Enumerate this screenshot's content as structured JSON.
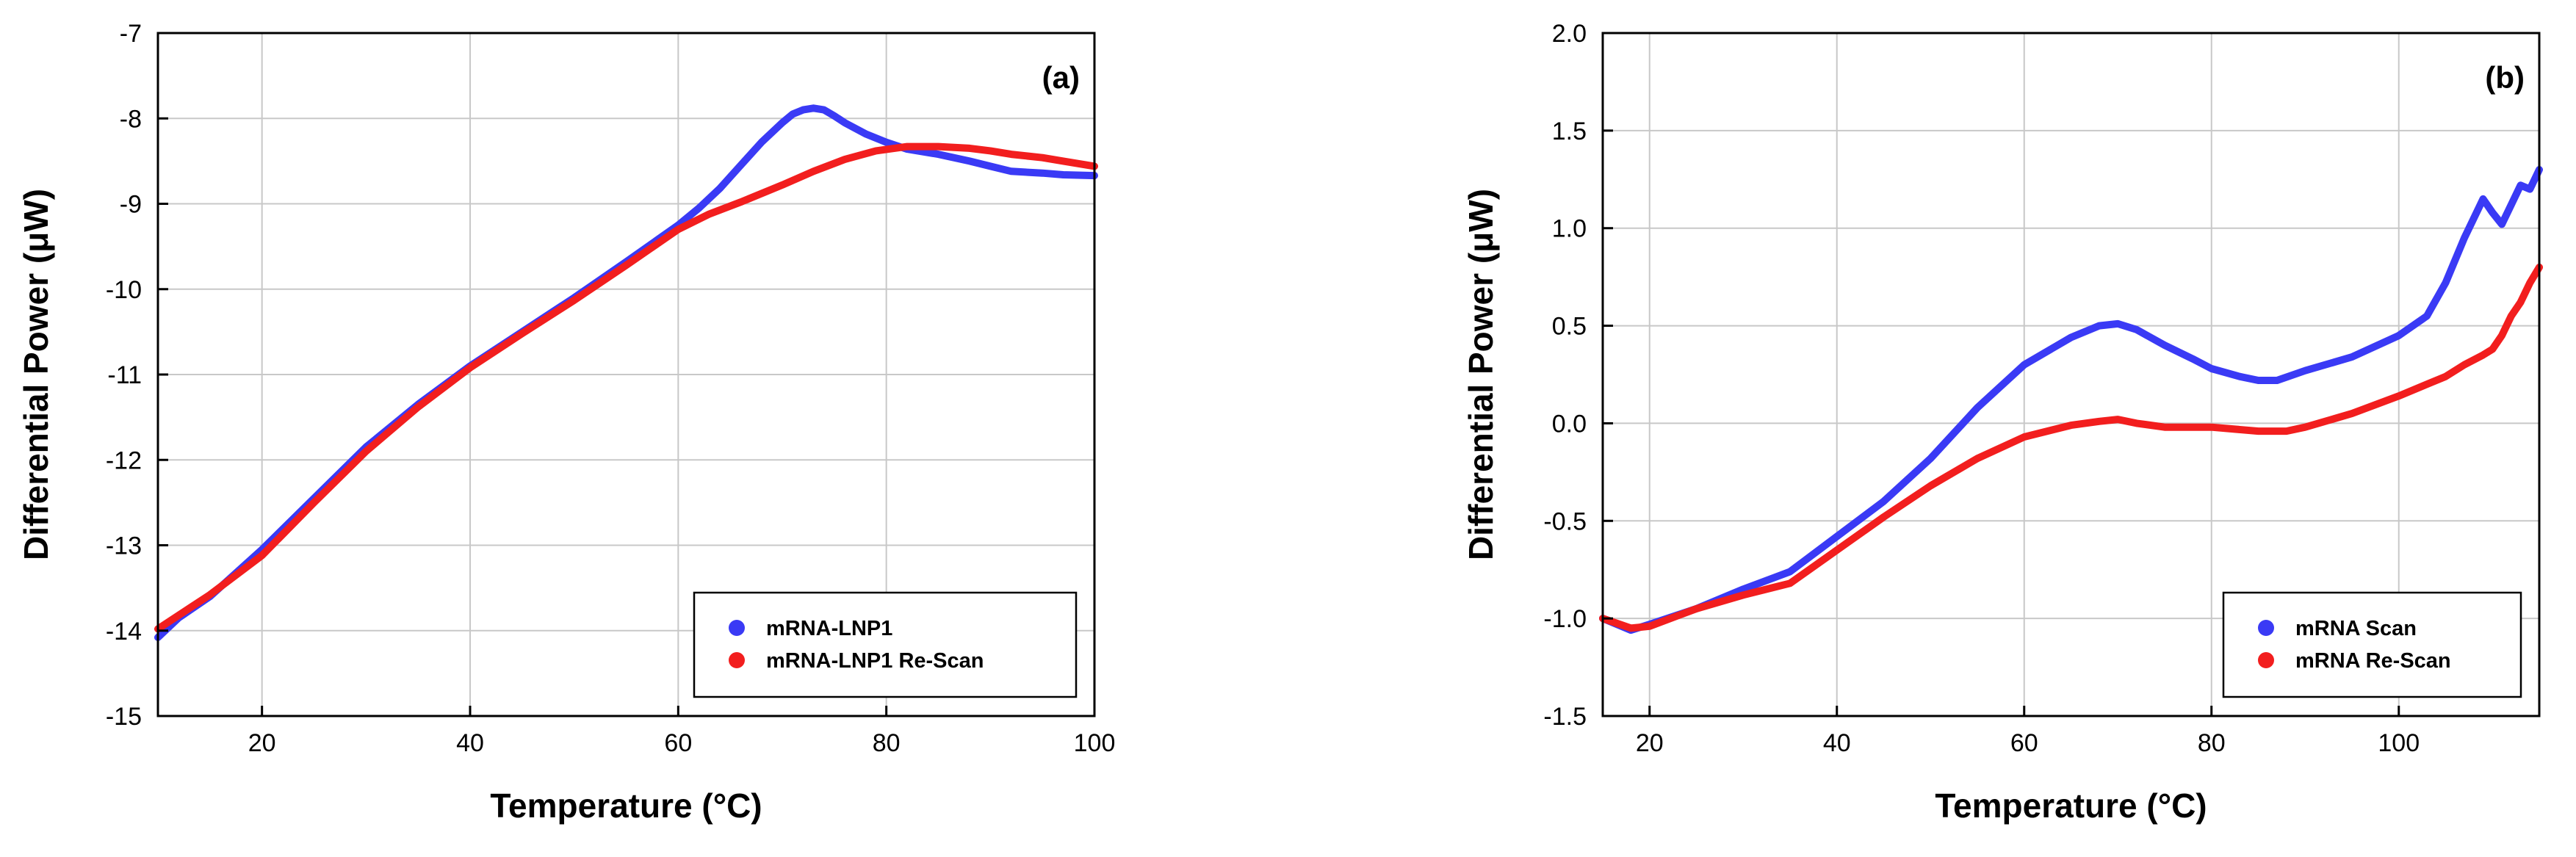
{
  "chart_data": [
    {
      "type": "line",
      "panel_label": "(a)",
      "xlabel": "Temperature (°C)",
      "ylabel": "Differential Power (μW)",
      "xlim": [
        10,
        100
      ],
      "ylim": [
        -15,
        -7
      ],
      "xticks": [
        20,
        40,
        60,
        80,
        100
      ],
      "xtick_labels": [
        "20",
        "40",
        "60",
        "80",
        "100"
      ],
      "yticks": [
        -15,
        -14,
        -13,
        -12,
        -11,
        -10,
        -9,
        -8,
        -7
      ],
      "ytick_labels": [
        "-15",
        "-14",
        "-13",
        "-12",
        "-11",
        "-10",
        "-9",
        "-8",
        "-7"
      ],
      "grid": true,
      "legend_position": "bottom-right",
      "series": [
        {
          "name": "mRNA-LNP1",
          "color": "#3a3af5",
          "x": [
            10,
            12,
            15,
            20,
            25,
            30,
            35,
            40,
            45,
            50,
            55,
            60,
            62,
            64,
            66,
            68,
            70,
            71,
            72,
            73,
            74,
            75,
            76,
            78,
            80,
            82,
            85,
            88,
            90,
            92,
            95,
            97,
            100
          ],
          "y": [
            -14.08,
            -13.85,
            -13.6,
            -13.05,
            -12.45,
            -11.85,
            -11.35,
            -10.9,
            -10.5,
            -10.1,
            -9.68,
            -9.25,
            -9.05,
            -8.82,
            -8.55,
            -8.28,
            -8.05,
            -7.95,
            -7.9,
            -7.88,
            -7.9,
            -7.97,
            -8.05,
            -8.18,
            -8.28,
            -8.36,
            -8.42,
            -8.5,
            -8.56,
            -8.62,
            -8.64,
            -8.66,
            -8.67
          ]
        },
        {
          "name": "mRNA-LNP1 Re-Scan",
          "color": "#f21e1e",
          "x": [
            10,
            12,
            15,
            20,
            25,
            30,
            35,
            40,
            45,
            50,
            55,
            60,
            63,
            66,
            70,
            73,
            76,
            79,
            82,
            85,
            88,
            90,
            92,
            95,
            97,
            100
          ],
          "y": [
            -13.98,
            -13.82,
            -13.58,
            -13.12,
            -12.5,
            -11.9,
            -11.38,
            -10.92,
            -10.52,
            -10.13,
            -9.72,
            -9.3,
            -9.12,
            -8.98,
            -8.78,
            -8.62,
            -8.48,
            -8.38,
            -8.33,
            -8.33,
            -8.35,
            -8.38,
            -8.42,
            -8.46,
            -8.5,
            -8.56
          ]
        }
      ]
    },
    {
      "type": "line",
      "panel_label": "(b)",
      "xlabel": "Temperature (°C)",
      "ylabel": "Differential Power (μW)",
      "xlim": [
        15,
        115
      ],
      "ylim": [
        -1.5,
        2.0
      ],
      "xticks": [
        20,
        40,
        60,
        80,
        100
      ],
      "xtick_labels": [
        "20",
        "40",
        "60",
        "80",
        "100"
      ],
      "yticks": [
        -1.5,
        -1.0,
        -0.5,
        0.0,
        0.5,
        1.0,
        1.5,
        2.0
      ],
      "ytick_labels": [
        "-1.5",
        "-1.0",
        "-0.5",
        "0.0",
        "0.5",
        "1.0",
        "1.5",
        "2.0"
      ],
      "grid": true,
      "legend_position": "bottom-right",
      "series": [
        {
          "name": "mRNA Scan",
          "color": "#3a3af5",
          "x": [
            15,
            18,
            20,
            25,
            30,
            35,
            40,
            45,
            50,
            55,
            60,
            65,
            68,
            70,
            72,
            75,
            78,
            80,
            83,
            85,
            87,
            90,
            95,
            100,
            103,
            105,
            107,
            109,
            110,
            111,
            112,
            113,
            114,
            115
          ],
          "y": [
            -1.0,
            -1.06,
            -1.03,
            -0.95,
            -0.85,
            -0.76,
            -0.58,
            -0.4,
            -0.18,
            0.08,
            0.3,
            0.44,
            0.5,
            0.51,
            0.48,
            0.4,
            0.33,
            0.28,
            0.24,
            0.22,
            0.22,
            0.27,
            0.34,
            0.45,
            0.55,
            0.72,
            0.95,
            1.15,
            1.08,
            1.02,
            1.12,
            1.22,
            1.2,
            1.3
          ]
        },
        {
          "name": "mRNA Re-Scan",
          "color": "#f21e1e",
          "x": [
            15,
            18,
            20,
            25,
            30,
            35,
            40,
            45,
            50,
            55,
            60,
            65,
            68,
            70,
            72,
            75,
            80,
            85,
            88,
            90,
            95,
            100,
            103,
            105,
            107,
            109,
            110,
            111,
            112,
            113,
            114,
            115
          ],
          "y": [
            -1.0,
            -1.05,
            -1.04,
            -0.95,
            -0.88,
            -0.82,
            -0.65,
            -0.48,
            -0.32,
            -0.18,
            -0.07,
            -0.01,
            0.01,
            0.02,
            0.0,
            -0.02,
            -0.02,
            -0.04,
            -0.04,
            -0.02,
            0.05,
            0.14,
            0.2,
            0.24,
            0.3,
            0.35,
            0.38,
            0.45,
            0.55,
            0.62,
            0.72,
            0.8
          ]
        }
      ]
    }
  ]
}
